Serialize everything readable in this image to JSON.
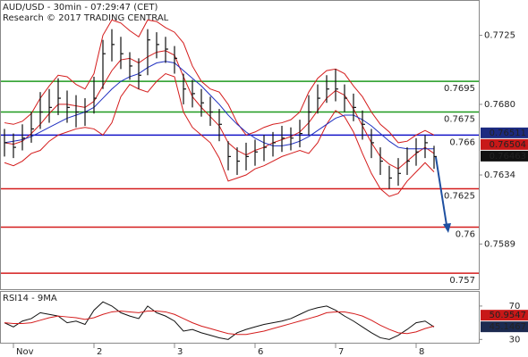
{
  "chart_data": {
    "type": "ohlc",
    "title": "AUD/USD - 30min - 07:29:47 (CET)",
    "subtitle": "Research © 2017 TRADING CENTRAL",
    "categories": [
      null,
      "Nov",
      null,
      null,
      null,
      null,
      null,
      null,
      null,
      null,
      "2",
      null,
      null,
      null,
      null,
      null,
      null,
      null,
      null,
      "3",
      null,
      null,
      null,
      null,
      null,
      null,
      null,
      null,
      "6",
      null,
      null,
      null,
      null,
      null,
      null,
      null,
      null,
      "7",
      null,
      null,
      null,
      null,
      null,
      null,
      null,
      null,
      "8",
      null,
      null
    ],
    "ylim": [
      0.7559,
      0.7748
    ],
    "yticks": [
      0.7725,
      {
        "value": 0.768,
        "label": "0.7680"
      },
      0.7634,
      0.7589
    ],
    "color": "#111111",
    "high": [
      0.7664,
      0.7661,
      0.7667,
      0.7675,
      0.7688,
      0.769,
      0.7697,
      0.7689,
      0.7686,
      0.7684,
      0.7698,
      0.7722,
      0.7729,
      0.7724,
      0.7714,
      0.771,
      0.7729,
      0.7727,
      0.7724,
      0.7718,
      0.77,
      0.7696,
      0.769,
      0.7685,
      0.7677,
      0.7656,
      0.7652,
      0.7655,
      0.7657,
      0.766,
      0.7662,
      0.7666,
      0.7665,
      0.767,
      0.7686,
      0.7693,
      0.7699,
      0.7703,
      0.7693,
      0.7687,
      0.7676,
      0.7664,
      0.7652,
      0.764,
      0.7645,
      0.7652,
      0.7658,
      0.766,
      0.7653
    ],
    "low": [
      0.7646,
      0.7645,
      0.765,
      0.7655,
      0.7664,
      0.7668,
      0.7673,
      0.7668,
      0.7665,
      0.7666,
      0.7674,
      0.769,
      0.7708,
      0.7703,
      0.7696,
      0.769,
      0.7699,
      0.771,
      0.7707,
      0.77,
      0.768,
      0.7678,
      0.7672,
      0.7666,
      0.7656,
      0.7637,
      0.7634,
      0.7637,
      0.764,
      0.7643,
      0.7646,
      0.7649,
      0.765,
      0.7652,
      0.766,
      0.7674,
      0.7681,
      0.7682,
      0.7675,
      0.7669,
      0.7657,
      0.7645,
      0.7634,
      0.7625,
      0.7627,
      0.7634,
      0.764,
      0.7645,
      0.7638
    ],
    "close": [
      0.7655,
      0.7652,
      0.7658,
      0.7664,
      0.7675,
      0.7678,
      0.7684,
      0.7678,
      0.7675,
      0.7675,
      0.7684,
      0.7713,
      0.7719,
      0.7713,
      0.7705,
      0.7699,
      0.7722,
      0.7719,
      0.7716,
      0.771,
      0.769,
      0.7687,
      0.7681,
      0.7675,
      0.7667,
      0.7646,
      0.7643,
      0.7646,
      0.7649,
      0.7652,
      0.7655,
      0.7658,
      0.7658,
      0.7661,
      0.7675,
      0.7684,
      0.769,
      0.769,
      0.7684,
      0.7678,
      0.7667,
      0.7655,
      0.7643,
      0.7632,
      0.7635,
      0.7643,
      0.7649,
      0.7655,
      0.7646
    ],
    "lines": [
      {
        "color": "#d41c1c",
        "values": [
          0.7668,
          0.7667,
          0.7669,
          0.7674,
          0.7684,
          0.7692,
          0.7699,
          0.7698,
          0.7693,
          0.769,
          0.77,
          0.7725,
          0.7735,
          0.7733,
          0.7728,
          0.7724,
          0.7735,
          0.7734,
          0.773,
          0.7727,
          0.772,
          0.7705,
          0.7695,
          0.769,
          0.7688,
          0.768,
          0.7668,
          0.766,
          0.7662,
          0.7665,
          0.7667,
          0.7668,
          0.767,
          0.7675,
          0.7688,
          0.7697,
          0.7702,
          0.7703,
          0.77,
          0.7692,
          0.7685,
          0.7675,
          0.7667,
          0.7662,
          0.7655,
          0.7656,
          0.766,
          0.7663,
          0.766
        ]
      },
      {
        "color": "#d41c1c",
        "values": [
          0.7642,
          0.764,
          0.7643,
          0.7648,
          0.765,
          0.7656,
          0.766,
          0.7662,
          0.7664,
          0.7665,
          0.7664,
          0.766,
          0.7668,
          0.7685,
          0.7693,
          0.769,
          0.7688,
          0.7695,
          0.77,
          0.7698,
          0.7675,
          0.7665,
          0.766,
          0.7655,
          0.7645,
          0.763,
          0.7632,
          0.7634,
          0.7638,
          0.764,
          0.7643,
          0.7646,
          0.7648,
          0.765,
          0.7648,
          0.7655,
          0.7667,
          0.7676,
          0.7672,
          0.7662,
          0.7648,
          0.7635,
          0.7625,
          0.762,
          0.7622,
          0.763,
          0.7636,
          0.7642,
          0.7636
        ]
      },
      {
        "color": "#d41c1c",
        "values": [
          0.7655,
          0.7654,
          0.7656,
          0.7661,
          0.7667,
          0.7674,
          0.768,
          0.768,
          0.7679,
          0.7678,
          0.7682,
          0.7692,
          0.7702,
          0.7709,
          0.771,
          0.7707,
          0.7711,
          0.7714,
          0.7715,
          0.7712,
          0.7698,
          0.7685,
          0.7678,
          0.7672,
          0.7666,
          0.7655,
          0.765,
          0.7647,
          0.765,
          0.7652,
          0.7655,
          0.7657,
          0.7659,
          0.7662,
          0.7668,
          0.7676,
          0.7684,
          0.7689,
          0.7686,
          0.7677,
          0.7666,
          0.7655,
          0.7646,
          0.7641,
          0.7638,
          0.7643,
          0.7648,
          0.7652,
          0.7648
        ]
      },
      {
        "color": "#1f2fc0",
        "values": [
          0.7655,
          0.7656,
          0.7657,
          0.7659,
          0.7662,
          0.7665,
          0.7668,
          0.7671,
          0.7673,
          0.7675,
          0.7678,
          0.7684,
          0.769,
          0.7695,
          0.7698,
          0.77,
          0.7704,
          0.7707,
          0.7708,
          0.7707,
          0.7702,
          0.7697,
          0.7692,
          0.7686,
          0.768,
          0.7673,
          0.7667,
          0.7662,
          0.7658,
          0.7655,
          0.7653,
          0.7653,
          0.7654,
          0.7656,
          0.7659,
          0.7663,
          0.7667,
          0.7671,
          0.7673,
          0.7673,
          0.767,
          0.7666,
          0.7661,
          0.7656,
          0.7652,
          0.7651,
          0.7651,
          0.7651,
          0.7651
        ]
      }
    ],
    "levels": [
      {
        "value": 0.7695,
        "color": "#1f9a1f"
      },
      {
        "value": 0.7675,
        "color": "#1f9a1f"
      },
      {
        "value": 0.766,
        "color": "#1414c8"
      },
      {
        "value": 0.7625,
        "color": "#d41c1c"
      },
      {
        "value": 0.76,
        "color": "#d41c1c"
      },
      {
        "value": 0.757,
        "color": "#d41c1c"
      }
    ],
    "price_markers": [
      {
        "value": 0.76511,
        "color": "#1c2a80"
      },
      {
        "value": 0.76504,
        "color": "#c81818"
      },
      {
        "value": 0.76463,
        "color": "#111111"
      }
    ],
    "rsi": {
      "title": "RSI14 - 9MA",
      "ylim": [
        25,
        87
      ],
      "yticks": [
        70,
        30
      ],
      "lines": [
        {
          "color": "#111111",
          "values": [
            50,
            45,
            52,
            55,
            62,
            60,
            58,
            50,
            52,
            48,
            65,
            75,
            70,
            62,
            58,
            55,
            70,
            62,
            58,
            52,
            40,
            42,
            38,
            35,
            32,
            30,
            38,
            42,
            45,
            48,
            50,
            52,
            55,
            60,
            65,
            68,
            70,
            65,
            58,
            52,
            45,
            38,
            32,
            30,
            35,
            42,
            50,
            52,
            45
          ]
        },
        {
          "color": "#d41c1c",
          "values": [
            50,
            49,
            49,
            50,
            53,
            56,
            58,
            57,
            56,
            54,
            56,
            60,
            63,
            64,
            63,
            62,
            64,
            64,
            63,
            60,
            55,
            50,
            46,
            43,
            40,
            37,
            36,
            36,
            38,
            40,
            43,
            46,
            49,
            52,
            55,
            58,
            62,
            63,
            63,
            61,
            58,
            53,
            47,
            42,
            38,
            37,
            39,
            43,
            46
          ]
        }
      ],
      "markers": [
        {
          "value": 50.9547,
          "color": "#c81818"
        },
        {
          "value": 45.1467,
          "color": "#1c2a50"
        }
      ]
    }
  }
}
